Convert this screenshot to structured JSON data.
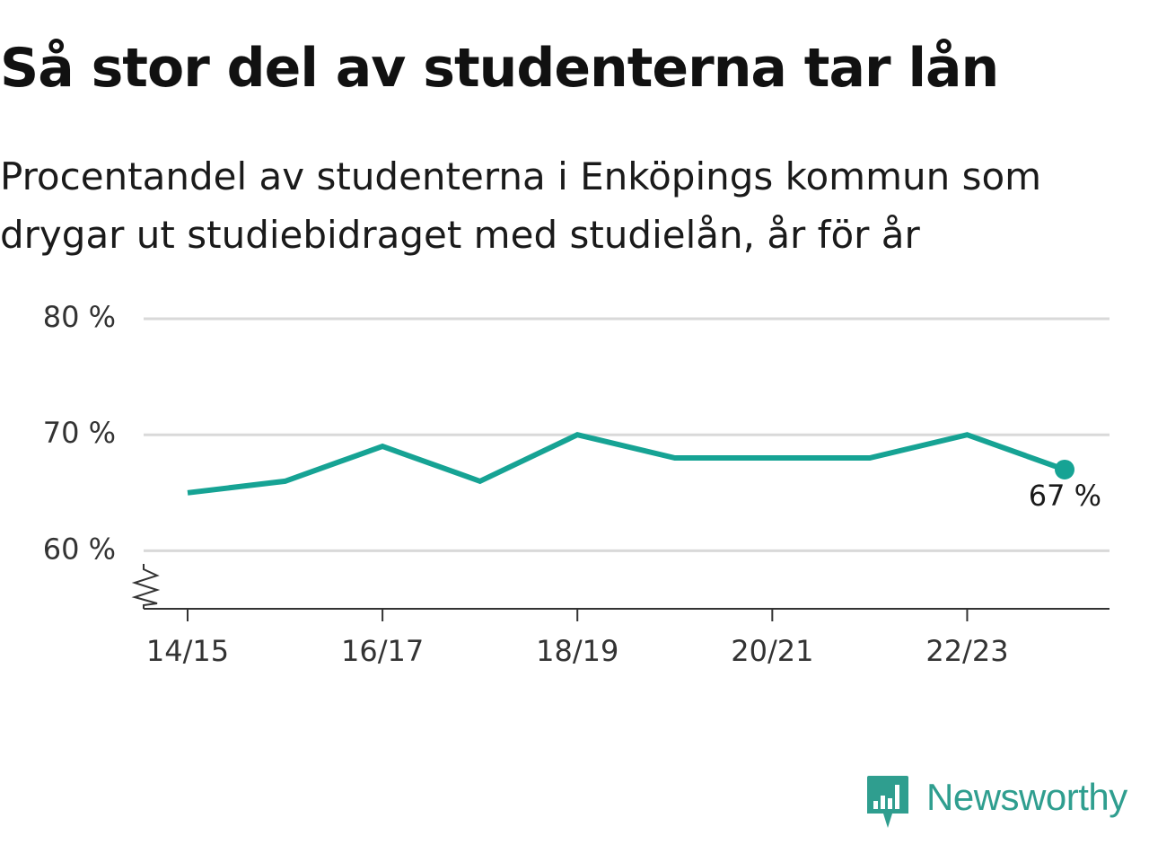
{
  "title": "Så stor del av studenterna tar lån",
  "subtitle": "Procentandel av studenterna i Enköpings kommun som drygar ut studiebidraget med studielån, år för år",
  "brand": {
    "name": "Newsworthy",
    "icon": "newsworthy-logo-icon"
  },
  "colors": {
    "line": "#16a394",
    "grid": "#d9d9d9",
    "axis": "#333333",
    "brand": "#2f9e8f"
  },
  "chart_data": {
    "type": "line",
    "x": [
      "14/15",
      "15/16",
      "16/17",
      "17/18",
      "18/19",
      "19/20",
      "20/21",
      "21/22",
      "22/23",
      "23/24"
    ],
    "xticks": [
      "14/15",
      "16/17",
      "18/19",
      "20/21",
      "22/23"
    ],
    "yticks": [
      "60 %",
      "70 %",
      "80 %"
    ],
    "ytick_values": [
      60,
      70,
      80
    ],
    "series": [
      {
        "values": [
          65,
          66,
          69,
          66,
          70,
          68,
          68,
          68,
          70,
          67
        ]
      }
    ],
    "ylim": [
      55,
      80
    ],
    "axis_break": true,
    "grid": true,
    "end_label": "67 %"
  }
}
